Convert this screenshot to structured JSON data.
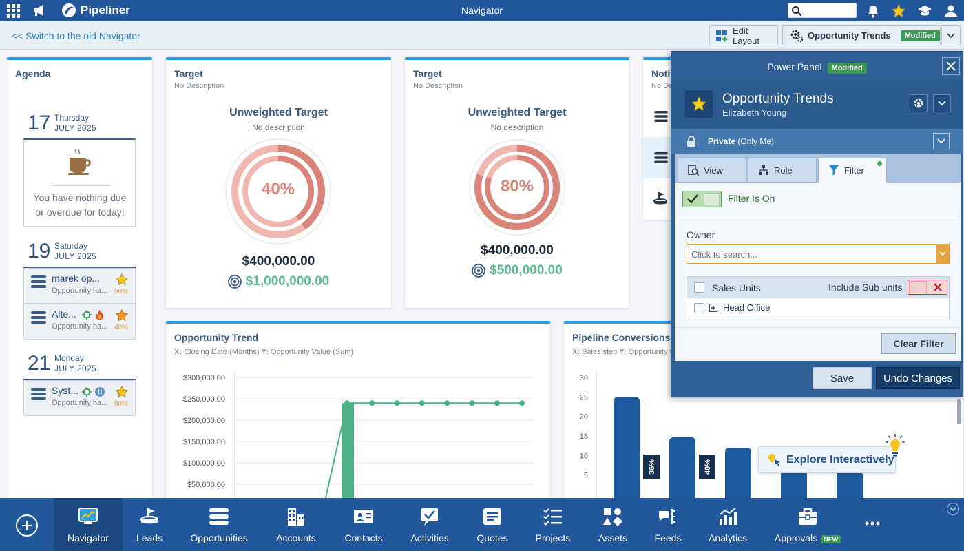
{
  "topbar": {
    "app_name": "Pipeliner",
    "title": "Navigator",
    "search_placeholder": ""
  },
  "subbar": {
    "switch_link": "<< Switch to the old Navigator",
    "edit_layout": "Edit Layout",
    "profile_name": "Opportunity Trends",
    "profile_badge": "Modified"
  },
  "agenda": {
    "title": "Agenda",
    "days": [
      {
        "num": "17",
        "dname": "Thursday",
        "month": "JULY 2025",
        "empty_text": "You have nothing due or overdue for today!"
      },
      {
        "num": "19",
        "dname": "Saturday",
        "month": "JULY 2025",
        "items": [
          {
            "title": "marek op...",
            "sub": "Opportunity ha...",
            "pct": "50%"
          },
          {
            "title": "Alte...",
            "sub": "Opportunity ha...",
            "pct": "40%"
          }
        ]
      },
      {
        "num": "21",
        "dname": "Monday",
        "month": "JULY 2025",
        "items": [
          {
            "title": "Syst...",
            "sub": "Opportunity ha...",
            "pct": "50%"
          }
        ]
      }
    ]
  },
  "targets": [
    {
      "title": "Target",
      "sub": "No Description",
      "heading": "Unweighted Target",
      "desc": "No description",
      "pct_label": "40%",
      "progress": 0.4,
      "amount": "$400,000.00",
      "goal": "$1,000,000.00"
    },
    {
      "title": "Target",
      "sub": "No Description",
      "heading": "Unweighted Target",
      "desc": "No description",
      "pct_label": "80%",
      "progress": 0.8,
      "amount": "$400,000.00",
      "goal": "$500,000.00"
    }
  ],
  "notif_card": {
    "title": "Notif",
    "sub": "No De"
  },
  "trend_chart": {
    "title": "Opportunity Trend",
    "sub_x_key": "X:",
    "sub_x": "Closing Date (Months)",
    "sub_y_key": "Y:",
    "sub_y": "Opportunity Value (Sum)"
  },
  "conv_chart": {
    "title": "Pipeline Conversions",
    "sub_x_key": "X:",
    "sub_x": "Sales step",
    "sub_y_key": "Y:",
    "sub_y": "Opportunity v"
  },
  "chart_data": [
    {
      "type": "bar+line",
      "title": "Opportunity Trend",
      "yticks": [
        "$300,000.00",
        "$250,000.00",
        "$200,000.00",
        "$150,000.00",
        "$100,000.00",
        "$50,000.00"
      ],
      "ylim": [
        0,
        300000
      ],
      "bar_values": [
        240000
      ],
      "line_values": [
        240000,
        240000,
        240000,
        240000,
        240000,
        240000,
        240000,
        240000
      ]
    },
    {
      "type": "bar",
      "title": "Pipeline Conversions",
      "yticks": [
        "30",
        "25",
        "20",
        "15",
        "10",
        "5"
      ],
      "ylim": [
        0,
        30
      ],
      "values": [
        25,
        14.7,
        12,
        8,
        6
      ],
      "conversion_labels": [
        "36%",
        "40%",
        "",
        "",
        ""
      ]
    }
  ],
  "power_panel": {
    "title": "Power Panel",
    "title_badge": "Modified",
    "profile_name": "Opportunity Trends",
    "owner": "Elizabeth Young",
    "privacy_bold": "Private",
    "privacy_rest": "(Only Me)",
    "tabs": [
      "View",
      "Role",
      "Filter"
    ],
    "filter_label": "Filter Is On",
    "owner_label": "Owner",
    "owner_placeholder": "Click to search...",
    "sales_units": "Sales Units",
    "include_sub": "Include Sub units",
    "head_office": "Head Office",
    "clear_filter": "Clear Filter",
    "save": "Save",
    "undo": "Undo Changes"
  },
  "explore": {
    "label": "Explore Interactively"
  },
  "bottom_nav": {
    "items": [
      "Navigator",
      "Leads",
      "Opportunities",
      "Accounts",
      "Contacts",
      "Activities",
      "Quotes",
      "Projects",
      "Assets",
      "Feeds",
      "Analytics",
      "Approvals"
    ],
    "approvals_badge": "NEW"
  },
  "colors": {
    "brand": "#22589b",
    "accent": "#2e9fe0",
    "success": "#3a9a55",
    "bar_trend": "#4caf86",
    "bar_conv": "#1f5a9e",
    "ring": "#d9857a"
  }
}
